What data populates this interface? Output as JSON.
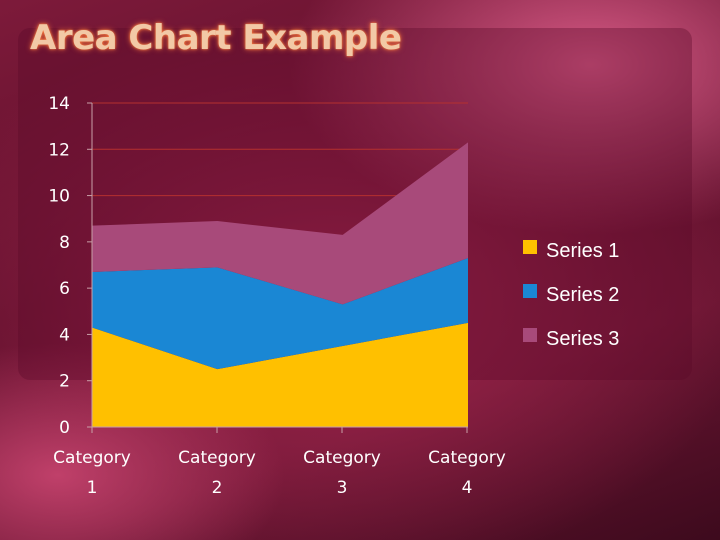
{
  "slide": {
    "title": "Area Chart Example"
  },
  "chart_data": {
    "type": "area",
    "stacked": true,
    "categories": [
      "Category 1",
      "Category 2",
      "Category 3",
      "Category 4"
    ],
    "series": [
      {
        "name": "Series 1",
        "values": [
          4.3,
          2.5,
          3.5,
          4.5
        ],
        "color": "#ffc000"
      },
      {
        "name": "Series 2",
        "values": [
          2.4,
          4.4,
          1.8,
          2.8
        ],
        "color": "#1a87d4"
      },
      {
        "name": "Series 3",
        "values": [
          2.0,
          2.0,
          3.0,
          5.0
        ],
        "color": "#a84a7a"
      }
    ],
    "ylim": [
      0,
      14
    ],
    "yticks": [
      0,
      2,
      4,
      6,
      8,
      10,
      12,
      14
    ],
    "grid": true,
    "gridline_color": "#b5302f",
    "legend_position": "right",
    "xlabel": "",
    "ylabel": ""
  }
}
